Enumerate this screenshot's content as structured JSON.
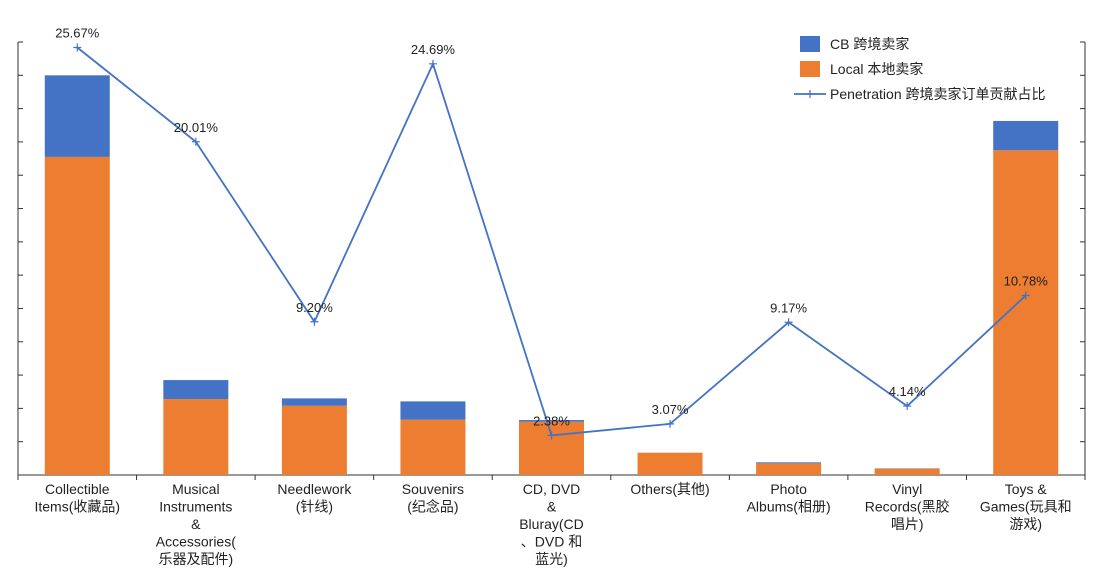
{
  "chart_data": {
    "type": "bar",
    "stacked": true,
    "categories": [
      [
        "Collectible",
        "Items(收藏品)"
      ],
      [
        "Musical",
        "Instruments",
        "&",
        "Accessories(",
        "乐器及配件)"
      ],
      [
        "Needlework",
        "(针线)"
      ],
      [
        "Souvenirs",
        "(纪念品)"
      ],
      [
        "CD, DVD",
        "&",
        "Bluray(CD",
        "、DVD 和",
        "蓝光)"
      ],
      [
        "Others(其他)"
      ],
      [
        "Photo",
        "Albums(相册)"
      ],
      [
        "Vinyl",
        "Records(黑胶",
        "唱片)"
      ],
      [
        "Toys &",
        "Games(玩具和",
        "游戏)"
      ]
    ],
    "series": [
      {
        "name": "Local 本地卖家",
        "type": "bar",
        "color": "#ED7D31",
        "values": [
          95.5,
          22.8,
          20.8,
          16.6,
          16.0,
          6.7,
          3.5,
          1.9,
          97.5
        ]
      },
      {
        "name": "CB 跨境卖家",
        "type": "bar",
        "color": "#4472C4",
        "values": [
          24.5,
          5.7,
          2.2,
          5.5,
          0.5,
          0,
          0.3,
          0.1,
          8.8
        ]
      },
      {
        "name": "Penetration 跨境卖家订单贡献占比",
        "type": "line",
        "axis": "secondary",
        "color": "#4472C4",
        "values": [
          25.67,
          20.01,
          9.2,
          24.69,
          2.38,
          3.07,
          9.17,
          4.14,
          10.78
        ],
        "labels": [
          "25.67%",
          "20.01%",
          "9.20%",
          "24.69%",
          "2.38%",
          "3.07%",
          "9.17%",
          "4.14%",
          "10.78%"
        ]
      }
    ],
    "ylim": [
      0,
      130
    ],
    "y2lim": [
      0,
      26
    ],
    "legend": [
      "CB 跨境卖家",
      "Local 本地卖家",
      "Penetration 跨境卖家订单贡献占比"
    ],
    "legend_position": "top-right",
    "grid": false,
    "title": "",
    "xlabel": "",
    "ylabel": ""
  }
}
